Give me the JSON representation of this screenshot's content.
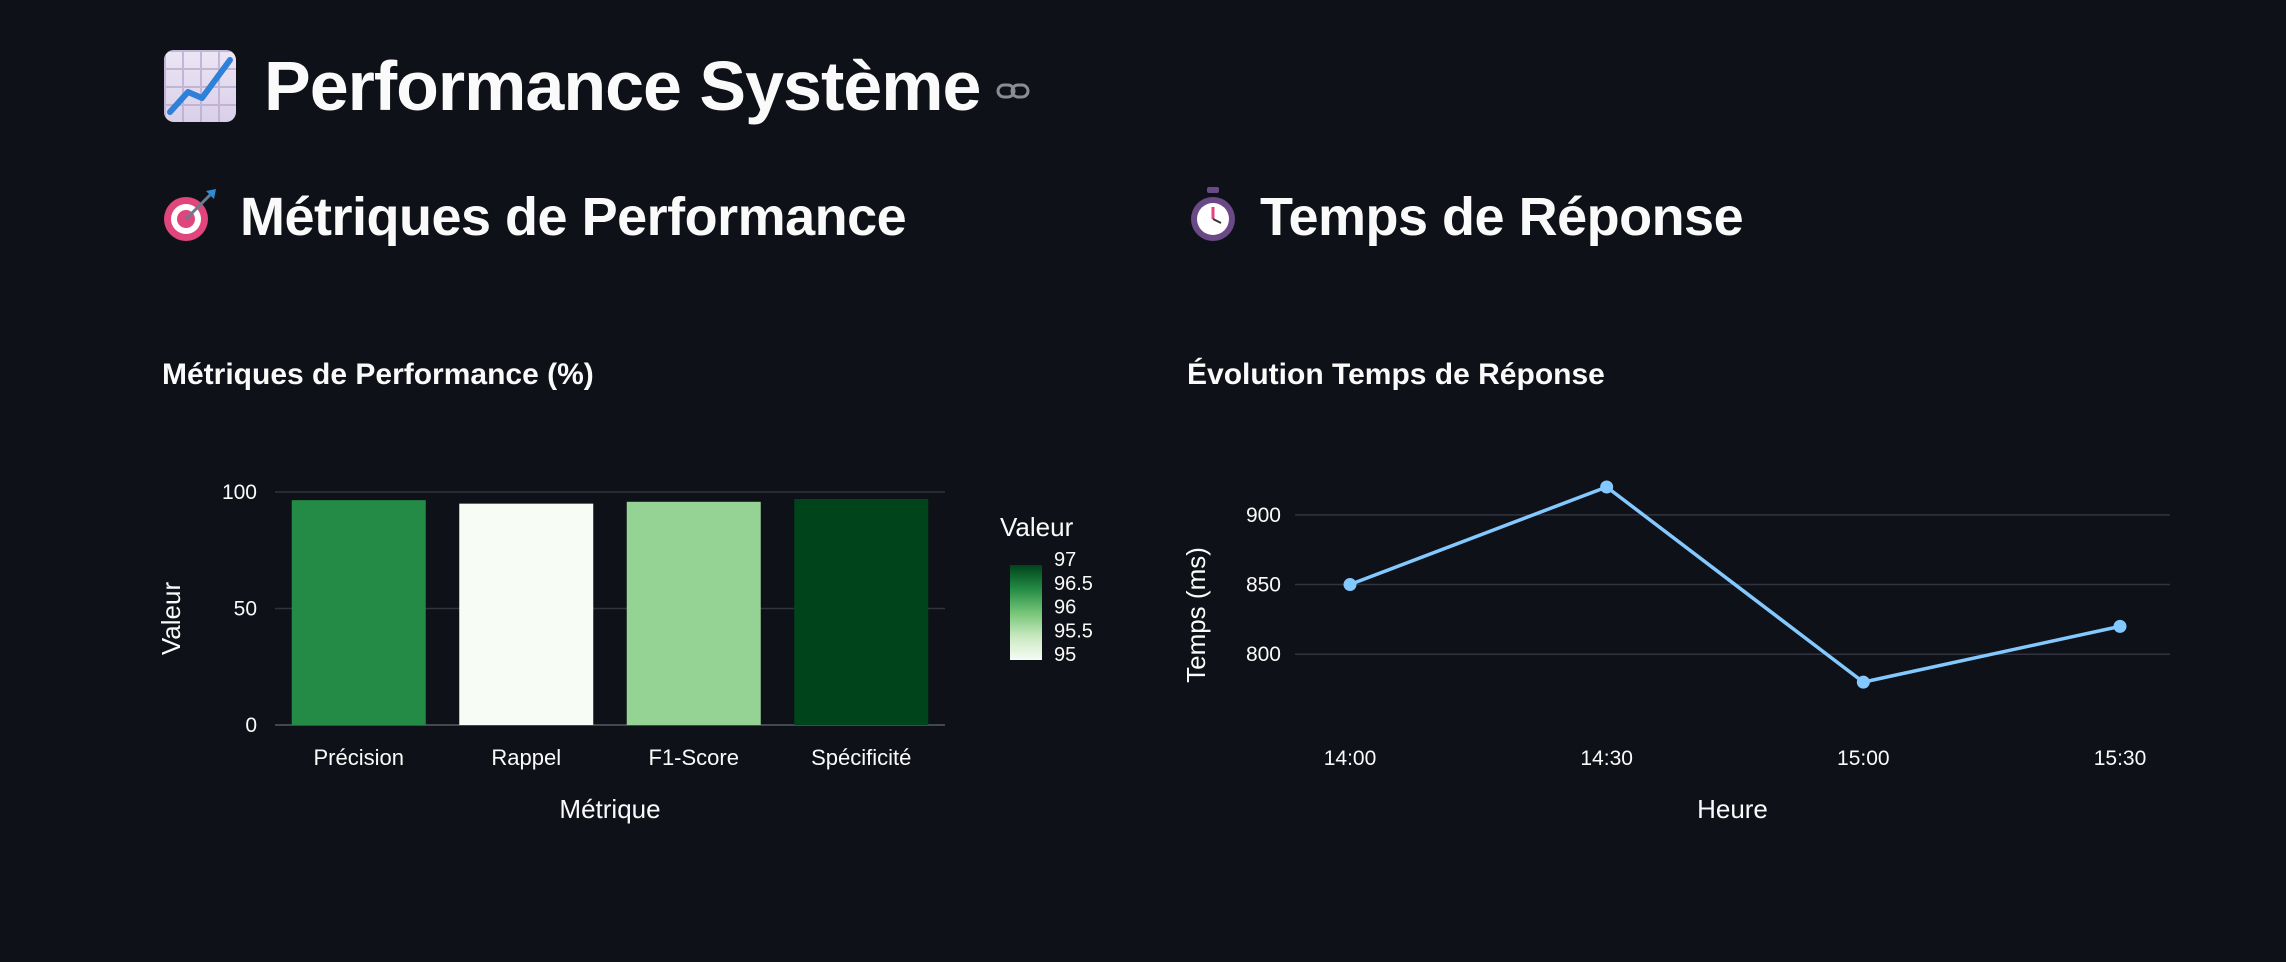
{
  "page": {
    "title": "Performance Système",
    "icons": {
      "title": "chart-increasing-icon",
      "link": "link-icon"
    }
  },
  "sections": [
    {
      "title": "Métriques de Performance",
      "icon": "target-icon"
    },
    {
      "title": "Temps de Réponse",
      "icon": "stopwatch-icon"
    }
  ],
  "chart_data": [
    {
      "type": "bar",
      "title": "Métriques de Performance (%)",
      "xlabel": "Métrique",
      "ylabel": "Valeur",
      "categories": [
        "Précision",
        "Rappel",
        "F1-Score",
        "Spécificité"
      ],
      "values": [
        96.5,
        95,
        95.8,
        97
      ],
      "ylim": [
        0,
        100
      ],
      "yticks": [
        "0",
        "50",
        "100"
      ],
      "grid": true,
      "colorbar": {
        "title": "Valeur",
        "ticks": [
          "95",
          "95.5",
          "96",
          "96.5",
          "97"
        ],
        "range": [
          95,
          97
        ],
        "colors": [
          "#f7fcf5",
          "#c7e9c0",
          "#74c476",
          "#238b45",
          "#00441b"
        ]
      }
    },
    {
      "type": "line",
      "title": "Évolution Temps de Réponse",
      "xlabel": "Heure",
      "ylabel": "Temps (ms)",
      "x": [
        "14:00",
        "14:30",
        "15:00",
        "15:30"
      ],
      "values": [
        850,
        920,
        780,
        820
      ],
      "yticks": [
        "800",
        "850",
        "900"
      ],
      "ylim": [
        760,
        925
      ],
      "grid": true,
      "color": "#83c9ff"
    }
  ]
}
